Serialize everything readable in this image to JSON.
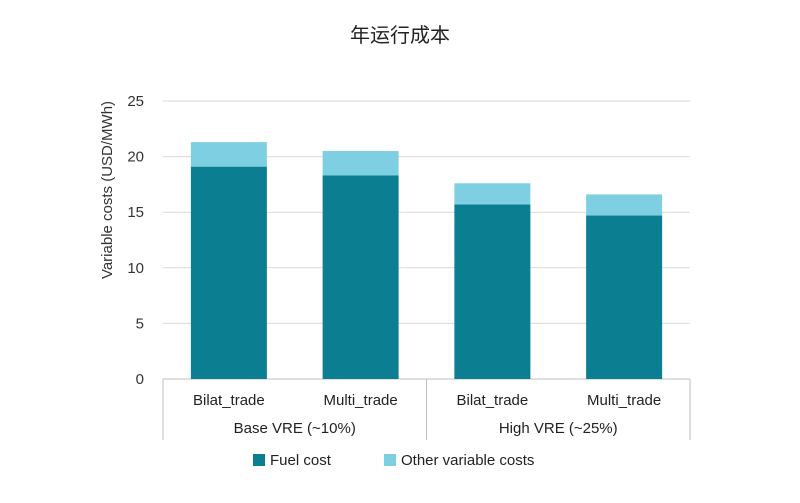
{
  "chart_data": {
    "type": "bar",
    "stacked": true,
    "title": "年运行成本",
    "ylabel": "Variable costs (USD/MWh)",
    "xlabel": "",
    "ylim": [
      0,
      25
    ],
    "yticks": [
      0,
      5,
      10,
      15,
      20,
      25
    ],
    "grid": true,
    "legend_position": "bottom",
    "categories": [
      "Bilat_trade",
      "Multi_trade",
      "Bilat_trade",
      "Multi_trade"
    ],
    "groups": [
      {
        "label": "Base VRE (~10%)",
        "categories": [
          "Bilat_trade",
          "Multi_trade"
        ]
      },
      {
        "label": "High VRE (~25%)",
        "categories": [
          "Bilat_trade",
          "Multi_trade"
        ]
      }
    ],
    "series": [
      {
        "name": "Fuel cost",
        "color": "#0b7f91",
        "values": [
          19.1,
          18.3,
          15.7,
          14.7
        ]
      },
      {
        "name": "Other variable costs",
        "color": "#7fcfe2",
        "values": [
          2.2,
          2.2,
          1.9,
          1.9
        ]
      }
    ]
  }
}
